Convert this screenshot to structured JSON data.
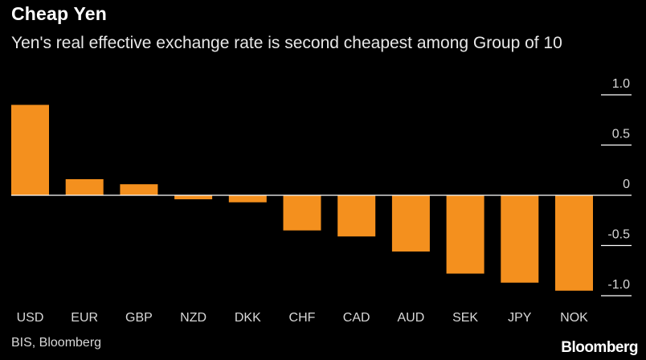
{
  "header": {
    "title": "Cheap Yen",
    "subtitle": "Yen's real effective exchange rate is second cheapest among Group of 10"
  },
  "footer": {
    "source": "BIS, Bloomberg",
    "brand": "Bloomberg"
  },
  "colors": {
    "bar": "#f4901e",
    "axis": "#ffffff",
    "gridline": "#ffffff",
    "background": "#000000"
  },
  "chart_data": {
    "type": "bar",
    "title": "Cheap Yen",
    "subtitle": "Yen's real effective exchange rate is second cheapest among Group of 10",
    "categories": [
      "USD",
      "EUR",
      "GBP",
      "NZD",
      "DKK",
      "CHF",
      "CAD",
      "AUD",
      "SEK",
      "JPY",
      "NOK"
    ],
    "values": [
      0.9,
      0.16,
      0.11,
      -0.04,
      -0.07,
      -0.35,
      -0.41,
      -0.56,
      -0.78,
      -0.87,
      -0.95
    ],
    "ylim": [
      -1.0,
      1.0
    ],
    "yticks": [
      1.0,
      0.5,
      0,
      -0.5,
      -1.0
    ],
    "ytick_labels": [
      "1.0",
      "0.5",
      "0",
      "-0.5",
      "-1.0"
    ],
    "xlabel": "",
    "ylabel": "",
    "source": "BIS, Bloomberg"
  }
}
